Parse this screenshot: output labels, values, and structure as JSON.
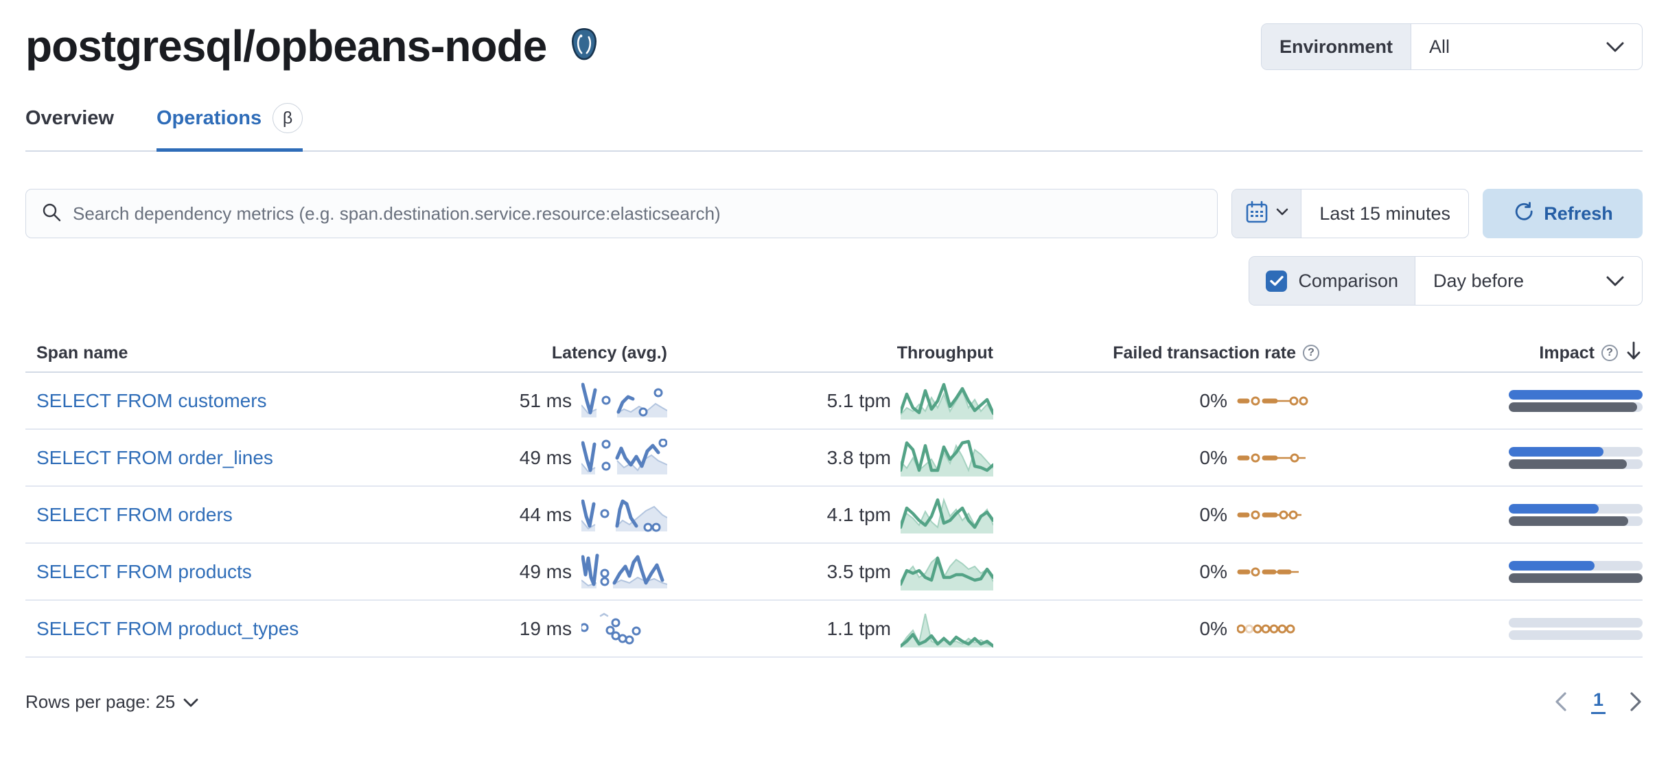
{
  "header": {
    "title": "postgresql/opbeans-node",
    "environment": {
      "label": "Environment",
      "value": "All"
    }
  },
  "tabs": [
    {
      "label": "Overview",
      "active": false
    },
    {
      "label": "Operations",
      "active": true,
      "beta_badge": "β"
    }
  ],
  "toolbar": {
    "search": {
      "placeholder": "Search dependency metrics (e.g. span.destination.service.resource:elasticsearch)",
      "value": ""
    },
    "time_picker": {
      "value": "Last 15 minutes"
    },
    "refresh": {
      "label": "Refresh"
    },
    "comparison": {
      "label": "Comparison",
      "checked": true,
      "value": "Day before"
    }
  },
  "table": {
    "columns": {
      "span_name": "Span name",
      "latency": "Latency (avg.)",
      "throughput": "Throughput",
      "failed_rate": "Failed transaction rate",
      "impact": "Impact"
    },
    "rows": [
      {
        "span_name": "SELECT FROM customers",
        "latency": "51 ms",
        "throughput": "5.1 tpm",
        "failed_rate": "0%",
        "impact": {
          "current_pct": 100,
          "previous_pct": 96
        },
        "sparks": {
          "latency": {
            "areas": [
              [
                [
                  0,
                  34
                ],
                [
                  10,
                  46
                ],
                [
                  22,
                  40
                ]
              ],
              [
                [
                  52,
                  46
                ],
                [
                  62,
                  40
                ],
                [
                  72,
                  44
                ],
                [
                  84,
                  36
                ],
                [
                  96,
                  42
                ],
                [
                  108,
                  32
                ],
                [
                  118,
                  38
                ],
                [
                  125,
                  42
                ]
              ]
            ],
            "lines": [
              [
                [
                  2,
                  4
                ],
                [
                  8,
                  28
                ],
                [
                  13,
                  45
                ],
                [
                  20,
                  12
                ]
              ],
              [
                [
                  54,
                  44
                ],
                [
                  60,
                  30
                ],
                [
                  68,
                  22
                ],
                [
                  75,
                  25
                ]
              ]
            ],
            "rings": [
              [
                36,
                27
              ],
              [
                90,
                44
              ],
              [
                112,
                16
              ]
            ]
          },
          "throughput": {
            "previous": [
              50,
              40,
              45,
              35,
              45,
              25,
              40,
              20,
              45,
              30,
              15,
              40,
              28,
              45,
              35,
              50
            ],
            "current": [
              46,
              20,
              40,
              47,
              15,
              42,
              30,
              6,
              38,
              26,
              12,
              30,
              44,
              36,
              28,
              48
            ]
          },
          "failed": {
            "dashes": [
              [
                4,
                15
              ],
              [
                40,
                56
              ]
            ],
            "thin": [
              [
                55,
                80
              ]
            ],
            "rings": [
              [
                27,
                20
              ],
              [
                83,
                20
              ],
              [
                97,
                20
              ]
            ],
            "faded_rings": []
          }
        }
      },
      {
        "span_name": "SELECT FROM order_lines",
        "latency": "49 ms",
        "throughput": "3.8 tpm",
        "failed_rate": "0%",
        "impact": {
          "current_pct": 71,
          "previous_pct": 88
        },
        "sparks": {
          "latency": {
            "areas": [
              [
                [
                  0,
                  36
                ],
                [
                  10,
                  48
                ],
                [
                  20,
                  42
                ]
              ],
              [
                [
                  52,
                  32
                ],
                [
                  62,
                  42
                ],
                [
                  72,
                  36
                ],
                [
                  82,
                  46
                ],
                [
                  92,
                  30
                ],
                [
                  102,
                  24
                ],
                [
                  112,
                  32
                ],
                [
                  125,
                  38
                ]
              ]
            ],
            "lines": [
              [
                [
                  2,
                  6
                ],
                [
                  8,
                  30
                ],
                [
                  13,
                  46
                ],
                [
                  19,
                  8
                ]
              ],
              [
                [
                  52,
                  28
                ],
                [
                  58,
                  14
                ],
                [
                  64,
                  28
                ],
                [
                  72,
                  38
                ],
                [
                  80,
                  26
                ],
                [
                  88,
                  40
                ],
                [
                  96,
                  18
                ],
                [
                  104,
                  10
                ],
                [
                  112,
                  20
                ]
              ]
            ],
            "rings": [
              [
                36,
                8
              ],
              [
                36,
                40
              ],
              [
                119,
                6
              ]
            ]
          },
          "throughput": {
            "previous": [
              35,
              45,
              30,
              48,
              40,
              32,
              48,
              22,
              38,
              12,
              28,
              48,
              18,
              25,
              35,
              45
            ],
            "current": [
              48,
              8,
              18,
              48,
              12,
              48,
              48,
              14,
              32,
              22,
              8,
              6,
              42,
              44,
              48,
              40
            ]
          },
          "failed": {
            "dashes": [
              [
                4,
                15
              ],
              [
                40,
                56
              ]
            ],
            "thin": [
              [
                55,
                80
              ],
              [
                88,
                100
              ]
            ],
            "rings": [
              [
                27,
                20
              ],
              [
                84,
                20
              ]
            ],
            "faded_rings": []
          }
        }
      },
      {
        "span_name": "SELECT FROM orders",
        "latency": "44 ms",
        "throughput": "4.1 tpm",
        "failed_rate": "0%",
        "impact": {
          "current_pct": 67,
          "previous_pct": 89
        },
        "sparks": {
          "latency": {
            "areas": [
              [
                [
                  0,
                  36
                ],
                [
                  10,
                  48
                ],
                [
                  20,
                  42
                ]
              ],
              [
                [
                  50,
                  46
                ],
                [
                  60,
                  36
                ],
                [
                  70,
                  42
                ],
                [
                  82,
                  32
                ],
                [
                  94,
                  22
                ],
                [
                  106,
                  16
                ],
                [
                  118,
                  28
                ],
                [
                  125,
                  32
                ]
              ]
            ],
            "lines": [
              [
                [
                  2,
                  8
                ],
                [
                  7,
                  30
                ],
                [
                  12,
                  44
                ],
                [
                  18,
                  12
                ]
              ],
              [
                [
                  52,
                  44
                ],
                [
                  56,
                  20
                ],
                [
                  60,
                  8
                ],
                [
                  66,
                  12
                ],
                [
                  72,
                  32
                ],
                [
                  80,
                  44
                ]
              ]
            ],
            "rings": [
              [
                34,
                26
              ],
              [
                97,
                46
              ],
              [
                109,
                46
              ]
            ]
          },
          "throughput": {
            "previous": [
              40,
              28,
              35,
              45,
              25,
              40,
              48,
              8,
              32,
              22,
              38,
              28,
              45,
              32,
              22,
              45
            ],
            "current": [
              48,
              20,
              28,
              38,
              45,
              32,
              8,
              42,
              38,
              28,
              20,
              38,
              48,
              32,
              26,
              38
            ]
          },
          "failed": {
            "dashes": [
              [
                4,
                15
              ],
              [
                40,
                56
              ]
            ],
            "thin": [
              [
                55,
                64
              ],
              [
                72,
                78
              ],
              [
                86,
                94
              ]
            ],
            "rings": [
              [
                27,
                20
              ],
              [
                68,
                20
              ],
              [
                82,
                20
              ]
            ],
            "faded_rings": []
          }
        }
      },
      {
        "span_name": "SELECT FROM products",
        "latency": "49 ms",
        "throughput": "3.5 tpm",
        "failed_rate": "0%",
        "impact": {
          "current_pct": 64,
          "previous_pct": 100
        },
        "sparks": {
          "latency": {
            "areas": [
              [
                [
                  0,
                  40
                ],
                [
                  10,
                  48
                ],
                [
                  22,
                  44
                ]
              ],
              [
                [
                  46,
                  46
                ],
                [
                  58,
                  40
                ],
                [
                  70,
                  44
                ],
                [
                  82,
                  36
                ],
                [
                  94,
                  42
                ],
                [
                  106,
                  38
                ],
                [
                  118,
                  44
                ],
                [
                  125,
                  46
                ]
              ]
            ],
            "lines": [
              [
                [
                  2,
                  6
                ],
                [
                  6,
                  32
                ],
                [
                  10,
                  8
                ],
                [
                  14,
                  36
                ],
                [
                  18,
                  46
                ],
                [
                  23,
                  4
                ]
              ],
              [
                [
                  48,
                  44
                ],
                [
                  56,
                  30
                ],
                [
                  64,
                  20
                ],
                [
                  70,
                  34
                ],
                [
                  76,
                  14
                ],
                [
                  82,
                  6
                ],
                [
                  88,
                  26
                ],
                [
                  94,
                  44
                ],
                [
                  102,
                  30
                ],
                [
                  110,
                  18
                ],
                [
                  118,
                  40
                ]
              ]
            ],
            "rings": [
              [
                34,
                30
              ],
              [
                34,
                42
              ]
            ]
          },
          "throughput": {
            "previous": [
              44,
              32,
              22,
              38,
              32,
              16,
              8,
              38,
              22,
              12,
              18,
              26,
              22,
              32,
              26,
              44
            ],
            "current": [
              48,
              28,
              32,
              28,
              38,
              42,
              10,
              38,
              38,
              34,
              34,
              38,
              42,
              40,
              26,
              38
            ]
          },
          "failed": {
            "dashes": [
              [
                4,
                16
              ],
              [
                40,
                54
              ],
              [
                62,
                76
              ]
            ],
            "thin": [
              [
                54,
                62
              ],
              [
                76,
                90
              ]
            ],
            "rings": [
              [
                27,
                20
              ]
            ],
            "faded_rings": []
          }
        }
      },
      {
        "span_name": "SELECT FROM product_types",
        "latency": "19 ms",
        "throughput": "1.1 tpm",
        "failed_rate": "0%",
        "impact": {
          "current_pct": 0,
          "previous_pct": 0
        },
        "sparks": {
          "latency": {
            "areas": [],
            "light_lines": [
              [
                [
                  28,
                  9
                ],
                [
                  33,
                  6
                ],
                [
                  38,
                  9
                ]
              ]
            ],
            "lines": [],
            "rings": [
              [
                4,
                26
              ],
              [
                42,
                30
              ],
              [
                50,
                19
              ],
              [
                50,
                38
              ],
              [
                60,
                42
              ],
              [
                70,
                44
              ],
              [
                80,
                31
              ]
            ]
          },
          "throughput": {
            "previous": [
              55,
              42,
              32,
              50,
              8,
              48,
              52,
              42,
              50,
              48,
              52,
              44,
              50,
              46,
              52,
              55
            ],
            "current": [
              55,
              48,
              38,
              52,
              48,
              40,
              52,
              44,
              52,
              42,
              48,
              52,
              44,
              52,
              48,
              55
            ]
          },
          "failed": {
            "dashes": [],
            "thin": [],
            "rings": [
              [
                6,
                20
              ],
              [
                30,
                20
              ],
              [
                42,
                20
              ],
              [
                54,
                20
              ],
              [
                66,
                20
              ],
              [
                78,
                20
              ]
            ],
            "faded_rings": [
              [
                18,
                20
              ]
            ]
          }
        }
      }
    ]
  },
  "footer": {
    "rows_per_page": "Rows per page: 25",
    "page": "1"
  },
  "colors": {
    "primary": "#2e6cb8",
    "link": "#2f6db8",
    "refresh_bg": "#cce0f1",
    "refresh_text": "#255ea5",
    "latency_line": "#567fbe",
    "latency_area": "#dee6f2",
    "latency_area_edge": "#b3c5df",
    "throughput_line": "#53a386",
    "throughput_area": "#cde7dc",
    "throughput_area_edge": "#a5d2c0",
    "failed": "#c98a46",
    "impact_current": "#3e75d1",
    "impact_previous": "#5e6470",
    "impact_track": "#dae0ea"
  }
}
